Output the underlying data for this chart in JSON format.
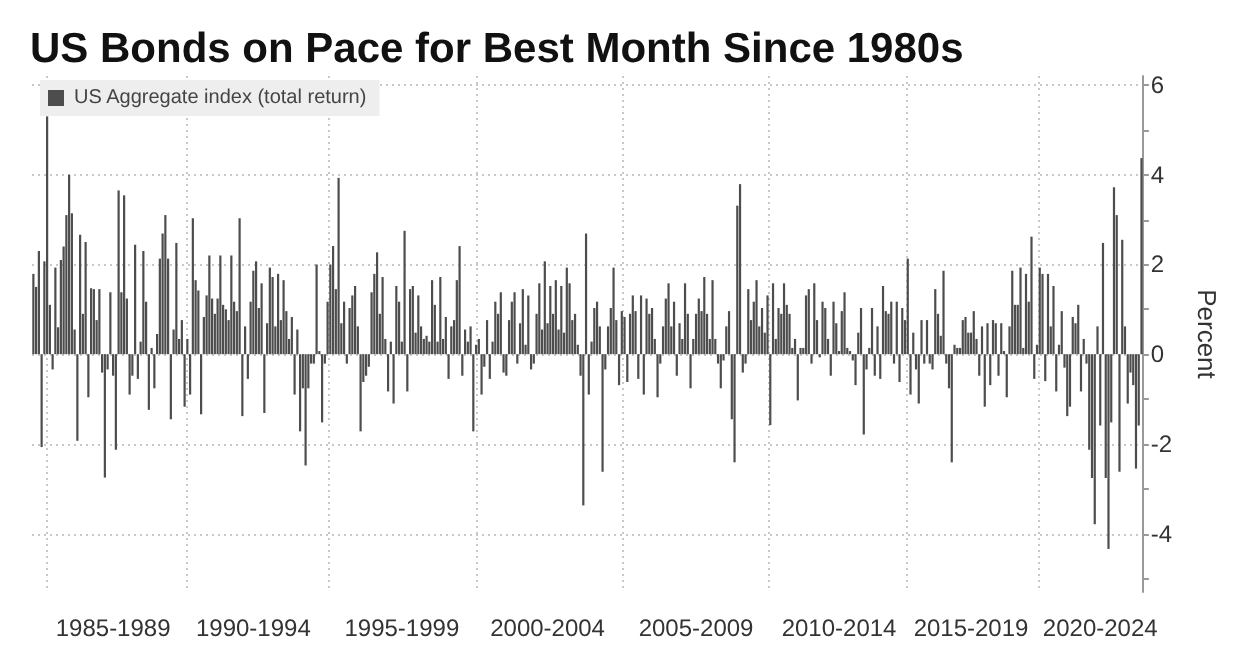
{
  "chart_data": {
    "type": "bar",
    "title": "US Bonds on Pace for Best Month Since 1980s",
    "ylabel": "Percent",
    "categories": [
      null,
      null,
      null,
      null,
      null,
      null,
      null,
      null,
      null,
      null,
      null,
      null,
      null,
      null,
      null,
      null,
      null,
      null,
      null,
      null,
      null,
      null,
      null,
      null,
      null,
      null,
      null,
      null,
      null,
      "1985-1989",
      null,
      null,
      null,
      null,
      null,
      null,
      null,
      null,
      null,
      null,
      null,
      null,
      null,
      null,
      null,
      null,
      null,
      null,
      null,
      null,
      null,
      null,
      null,
      null,
      null,
      null,
      null,
      null,
      null,
      null,
      null,
      null,
      null,
      null,
      null,
      null,
      null,
      null,
      null,
      null,
      null,
      null,
      null,
      null,
      null,
      null,
      null,
      null,
      null,
      null,
      "1990-1994",
      null,
      null,
      null,
      null,
      null,
      null,
      null,
      null,
      null,
      null,
      null,
      null,
      null,
      null,
      null,
      null,
      null,
      null,
      null,
      null,
      null,
      null,
      null,
      null,
      null,
      null,
      null,
      null,
      null,
      null,
      null,
      null,
      null,
      null,
      null,
      null,
      null,
      null,
      null,
      null,
      null,
      null,
      null,
      null,
      null,
      null,
      null,
      null,
      null,
      null,
      null,
      null,
      null,
      "1995-1999",
      null,
      null,
      null,
      null,
      null,
      null,
      null,
      null,
      null,
      null,
      null,
      null,
      null,
      null,
      null,
      null,
      null,
      null,
      null,
      null,
      null,
      null,
      null,
      null,
      null,
      null,
      null,
      null,
      null,
      null,
      null,
      null,
      null,
      null,
      null,
      null,
      null,
      null,
      null,
      null,
      null,
      null,
      null,
      null,
      null,
      null,
      null,
      null,
      null,
      null,
      null,
      null,
      "2000-2004",
      null,
      null,
      null,
      null,
      null,
      null,
      null,
      null,
      null,
      null,
      null,
      null,
      null,
      null,
      null,
      null,
      null,
      null,
      null,
      null,
      null,
      null,
      null,
      null,
      null,
      null,
      null,
      null,
      null,
      null,
      null,
      null,
      null,
      null,
      null,
      null,
      null,
      null,
      null,
      null,
      null,
      null,
      null,
      null,
      null,
      null,
      null,
      null,
      null,
      null,
      null,
      null,
      null,
      "2005-2009",
      null,
      null,
      null,
      null,
      null,
      null,
      null,
      null,
      null,
      null,
      null,
      null,
      null,
      null,
      null,
      null,
      null,
      null,
      null,
      null,
      null,
      null,
      null,
      null,
      null,
      null,
      null,
      null,
      null,
      null,
      null,
      null,
      null,
      null,
      null,
      null,
      null,
      null,
      null,
      null,
      null,
      null,
      null,
      null,
      null,
      null,
      null,
      null,
      null,
      null,
      null,
      "2010-2014",
      null,
      null,
      null,
      null,
      null,
      null,
      null,
      null,
      null,
      null,
      null,
      null,
      null,
      null,
      null,
      null,
      null,
      null,
      null,
      null,
      null,
      null,
      null,
      null,
      null,
      null,
      null,
      null,
      null,
      null,
      null,
      null,
      null,
      null,
      null,
      null,
      null,
      null,
      null,
      null,
      null,
      null,
      null,
      null,
      null,
      null,
      null,
      "2015-2019",
      null,
      null,
      null,
      null,
      null,
      null,
      null,
      null,
      null,
      null,
      null,
      null,
      null,
      null,
      null,
      null,
      null,
      null,
      null,
      null,
      null,
      null,
      null,
      null,
      null,
      null,
      null,
      null,
      null,
      null,
      null,
      null,
      null,
      null,
      null,
      null,
      null,
      null,
      null,
      null,
      null,
      null,
      null,
      null,
      null,
      null,
      "2020-2024",
      null,
      null,
      null,
      null,
      null,
      null,
      null,
      null,
      null,
      null,
      null,
      null,
      null,
      null,
      null
    ],
    "ylim": [
      -5.3,
      6.2
    ],
    "yticks": [
      -4,
      -2,
      0,
      2,
      4,
      6,
      {
        "value": -5,
        "label": null
      },
      {
        "value": -3,
        "label": null
      },
      {
        "value": -1,
        "label": null
      },
      {
        "value": 1,
        "label": null
      },
      {
        "value": 3,
        "label": null
      },
      {
        "value": 5,
        "label": null
      }
    ],
    "grid": true,
    "legend": "top left",
    "series": [
      {
        "name": "US Aggregate index (total return)",
        "color": "#4d4d4d",
        "values": [
          1.79,
          1.5,
          2.3,
          -2.07,
          2.07,
          5.3,
          1.1,
          -0.34,
          1.93,
          0.6,
          2.1,
          2.4,
          3.1,
          4.0,
          3.14,
          0.55,
          -1.93,
          2.66,
          0.9,
          2.5,
          -0.96,
          1.47,
          1.45,
          0.76,
          1.45,
          -0.41,
          -2.75,
          -0.34,
          1.38,
          -0.48,
          -2.13,
          3.65,
          1.38,
          3.54,
          1.24,
          -0.9,
          -0.48,
          2.44,
          -0.55,
          0.28,
          2.3,
          1.17,
          -1.24,
          0.14,
          -0.76,
          0.45,
          2.13,
          2.69,
          3.1,
          2.13,
          -1.45,
          0.55,
          2.48,
          0.34,
          0.76,
          -1.17,
          0.34,
          -0.9,
          3.03,
          1.65,
          1.42,
          -1.34,
          0.83,
          1.31,
          2.2,
          1.24,
          0.9,
          1.24,
          2.2,
          1.1,
          1.0,
          0.76,
          2.2,
          1.17,
          0.96,
          3.03,
          -1.38,
          0.62,
          -0.55,
          1.17,
          1.86,
          2.07,
          1.03,
          1.58,
          -1.31,
          0.69,
          1.93,
          1.72,
          0.62,
          1.79,
          0.76,
          1.65,
          0.96,
          0.34,
          0.83,
          -0.9,
          0.55,
          -1.72,
          -0.76,
          -2.48,
          -0.76,
          -0.21,
          -0.21,
          2.0,
          0.07,
          -1.52,
          -0.21,
          1.17,
          2.0,
          2.41,
          1.45,
          3.93,
          0.69,
          1.17,
          -0.21,
          1.03,
          1.31,
          1.52,
          0.62,
          -1.72,
          -0.62,
          -0.48,
          -0.28,
          1.38,
          1.79,
          2.27,
          0.9,
          1.72,
          0.34,
          -0.83,
          0.28,
          -1.1,
          1.52,
          1.17,
          0.28,
          2.75,
          -0.83,
          1.45,
          1.52,
          0.48,
          1.31,
          0.62,
          0.34,
          0.41,
          0.28,
          1.65,
          1.1,
          0.28,
          1.72,
          0.34,
          0.83,
          -0.55,
          0.62,
          0.76,
          1.65,
          2.41,
          -0.48,
          0.55,
          0.28,
          0.62,
          -1.72,
          0.21,
          0.34,
          -0.9,
          -0.28,
          0.76,
          -0.55,
          0.28,
          1.17,
          0.9,
          1.38,
          -0.41,
          -0.48,
          0.76,
          1.17,
          1.38,
          -0.21,
          0.69,
          1.45,
          0.21,
          1.31,
          -0.34,
          -0.21,
          0.9,
          1.58,
          0.55,
          2.07,
          0.69,
          1.52,
          0.9,
          1.65,
          0.55,
          1.52,
          0.48,
          1.93,
          1.58,
          0.76,
          0.9,
          0.21,
          -0.48,
          -3.37,
          2.69,
          -0.9,
          0.28,
          1.03,
          1.17,
          0.62,
          -2.62,
          -0.34,
          0.62,
          1.03,
          1.93,
          0.76,
          -0.69,
          0.96,
          0.83,
          -0.62,
          0.9,
          1.31,
          0.96,
          -0.55,
          1.31,
          -0.9,
          1.24,
          0.9,
          1.03,
          0.34,
          -0.96,
          -0.21,
          0.62,
          1.24,
          1.58,
          0.62,
          1.17,
          -0.48,
          0.69,
          0.34,
          1.58,
          0.9,
          -0.76,
          0.34,
          0.9,
          1.24,
          0.96,
          1.72,
          0.9,
          0.34,
          1.65,
          0.34,
          -0.21,
          -0.76,
          -0.14,
          0.62,
          0.96,
          -1.45,
          -2.41,
          3.31,
          3.79,
          -0.41,
          -0.21,
          1.45,
          0.76,
          1.17,
          1.65,
          0.62,
          1.03,
          0.48,
          1.31,
          -1.58,
          1.58,
          0.34,
          1.03,
          0.9,
          1.58,
          1.1,
          0.9,
          0.14,
          0.34,
          -1.03,
          0.14,
          0.14,
          1.31,
          1.45,
          -0.21,
          1.58,
          0.76,
          -0.07,
          1.17,
          1.03,
          0.34,
          -0.48,
          1.17,
          0.69,
          0.07,
          0.96,
          1.38,
          0.14,
          0.07,
          -0.14,
          -0.69,
          0.48,
          1.03,
          -1.79,
          -0.34,
          0.14,
          1.03,
          -0.48,
          0.62,
          -0.55,
          1.52,
          0.96,
          0.9,
          1.17,
          -0.21,
          1.17,
          -0.62,
          1.03,
          0.76,
          2.13,
          -0.9,
          0.48,
          -0.34,
          -1.1,
          0.76,
          -0.21,
          0.76,
          -0.21,
          -0.34,
          1.45,
          0.9,
          0.41,
          1.86,
          -0.21,
          -0.76,
          -2.41,
          0.21,
          0.14,
          0.14,
          0.76,
          0.83,
          0.48,
          0.48,
          0.96,
          0.34,
          -0.48,
          0.62,
          -1.17,
          0.69,
          -0.69,
          0.76,
          0.69,
          -0.48,
          0.69,
          0.07,
          -0.96,
          0.62,
          1.86,
          1.1,
          1.1,
          1.93,
          0.14,
          1.79,
          1.17,
          2.62,
          -0.55,
          0.21,
          1.93,
          1.79,
          -0.6,
          1.79,
          0.62,
          1.52,
          -0.83,
          0.21,
          0.96,
          -0.3,
          -1.38,
          -1.17,
          0.83,
          0.69,
          1.1,
          -0.83,
          0.34,
          -0.21,
          -2.13,
          -2.76,
          -3.79,
          0.62,
          -1.59,
          2.48,
          -2.76,
          -4.34,
          -1.52,
          3.72,
          3.1,
          -2.62,
          2.55,
          0.62,
          -1.1,
          -0.41,
          -0.69,
          -2.55,
          -1.59,
          4.37
        ]
      }
    ]
  }
}
